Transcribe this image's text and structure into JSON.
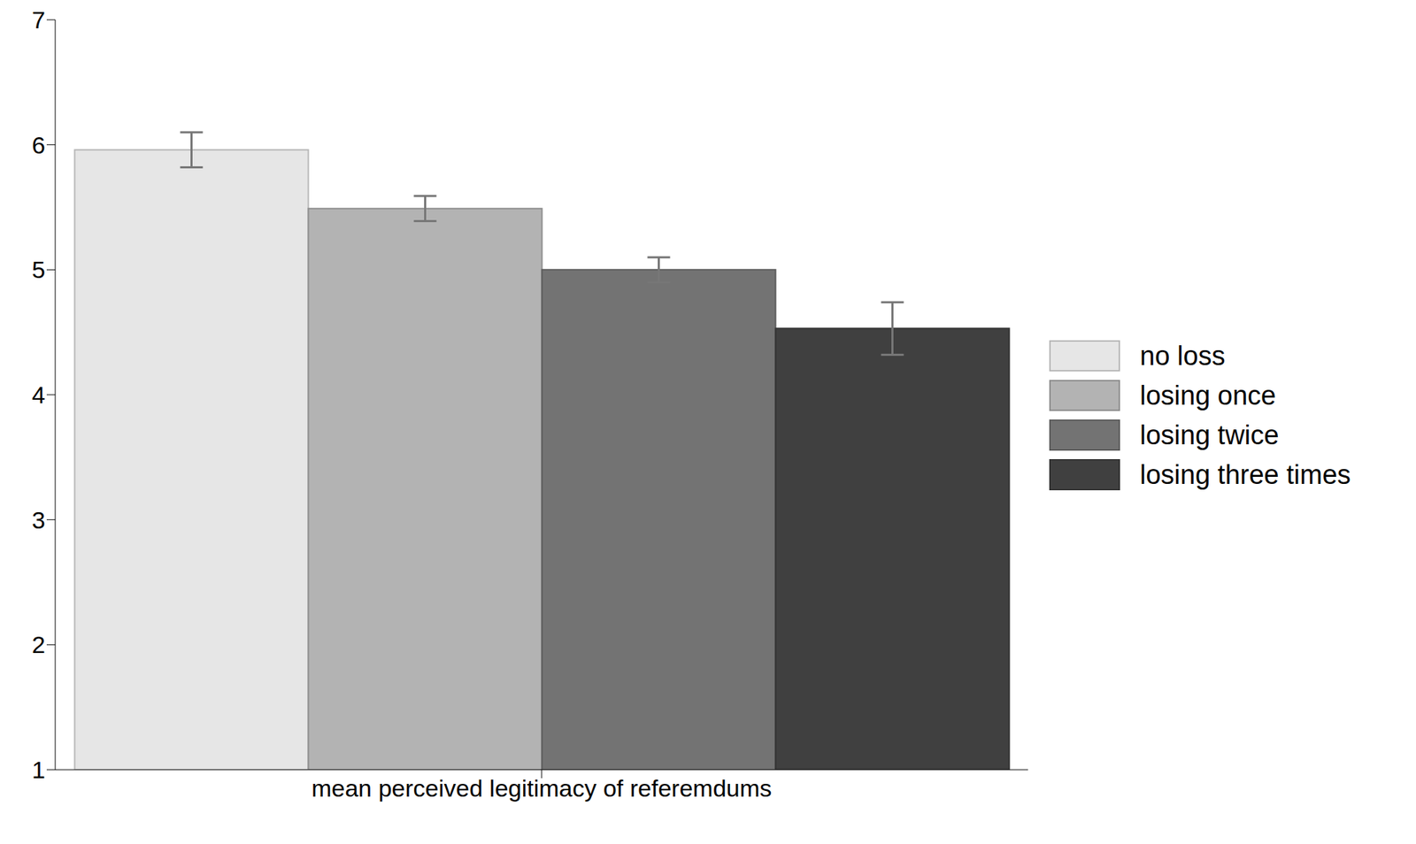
{
  "chart_data": {
    "type": "bar",
    "categories": [
      "mean perceived legitimacy of referemdums"
    ],
    "series": [
      {
        "name": "no loss",
        "color": "#e6e6e6",
        "values": [
          5.96
        ],
        "error": [
          0.14
        ]
      },
      {
        "name": "losing once",
        "color": "#b3b3b3",
        "values": [
          5.49
        ],
        "error": [
          0.1
        ]
      },
      {
        "name": "losing twice",
        "color": "#737373",
        "values": [
          5.0
        ],
        "error": [
          0.1
        ]
      },
      {
        "name": "losing three times",
        "color": "#404040",
        "values": [
          4.53
        ],
        "error": [
          0.21
        ]
      }
    ],
    "ylim": [
      1,
      7
    ],
    "yticks": [
      1,
      2,
      3,
      4,
      5,
      6,
      7
    ],
    "legend": "right",
    "grid": false
  }
}
